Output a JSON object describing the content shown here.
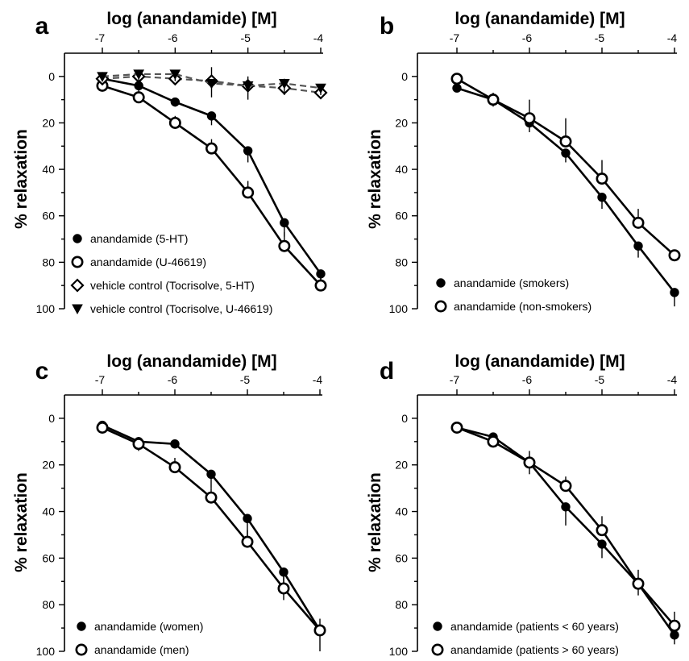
{
  "chart_data": [
    {
      "type": "line",
      "panel_label": "a",
      "title": "",
      "xlabel": "log (anandamide) [M]",
      "ylabel": "% relaxation",
      "x_ticks": [
        "-7",
        "-6",
        "-5",
        "-4"
      ],
      "y_ticks": [
        "0",
        "20",
        "40",
        "60",
        "80",
        "100"
      ],
      "xlim": [
        -7,
        -4
      ],
      "ylim": [
        -10,
        100
      ],
      "y_inverted": true,
      "x_axis_position": "top",
      "legend_position": "bottom-left",
      "x": [
        -7,
        -6.5,
        -6,
        -5.5,
        -5,
        -4.5,
        -4
      ],
      "series": [
        {
          "name": "anandamide (5-HT)",
          "marker": "filled-circle",
          "values": [
            1,
            4,
            11,
            17,
            32,
            63,
            85
          ],
          "errors": [
            1,
            2,
            2,
            4,
            5,
            6,
            7
          ]
        },
        {
          "name": "anandamide (U-46619)",
          "marker": "open-circle",
          "values": [
            4,
            9,
            20,
            31,
            50,
            73,
            90
          ],
          "errors": [
            2,
            4,
            3,
            4,
            5,
            6,
            5
          ]
        },
        {
          "name": "vehicle control (Tocrisolve, 5-HT)",
          "marker": "open-diamond",
          "dashed": true,
          "values": [
            1,
            0,
            1,
            2,
            4,
            5,
            7
          ],
          "errors": [
            1,
            1,
            1,
            6,
            4,
            4,
            2
          ]
        },
        {
          "name": "vehicle control (Tocrisolve, U-46619)",
          "marker": "filled-triangle-down",
          "dashed": true,
          "values": [
            0,
            -1,
            -1,
            3,
            4,
            3,
            5
          ],
          "errors": [
            1,
            5,
            3,
            6,
            6,
            5,
            3
          ]
        }
      ]
    },
    {
      "type": "line",
      "panel_label": "b",
      "title": "",
      "xlabel": "log (anandamide) [M]",
      "ylabel": "% relaxation",
      "x_ticks": [
        "-7",
        "-6",
        "-5",
        "-4"
      ],
      "y_ticks": [
        "0",
        "20",
        "40",
        "60",
        "80",
        "100"
      ],
      "xlim": [
        -7,
        -4
      ],
      "ylim": [
        -10,
        100
      ],
      "y_inverted": true,
      "x_axis_position": "top",
      "legend_position": "bottom-left",
      "x": [
        -7,
        -6.5,
        -6,
        -5.5,
        -5,
        -4.5,
        -4
      ],
      "series": [
        {
          "name": "anandamide (smokers)",
          "marker": "filled-circle",
          "values": [
            5,
            10,
            20,
            33,
            52,
            73,
            93
          ],
          "errors": [
            1,
            3,
            4,
            4,
            5,
            5,
            6
          ]
        },
        {
          "name": "anandamide (non-smokers)",
          "marker": "open-circle",
          "values": [
            1,
            10,
            18,
            28,
            44,
            63,
            77
          ],
          "errors": [
            1,
            3,
            8,
            10,
            8,
            6,
            2
          ]
        }
      ]
    },
    {
      "type": "line",
      "panel_label": "c",
      "title": "",
      "xlabel": "log (anandamide) [M]",
      "ylabel": "% relaxation",
      "x_ticks": [
        "-7",
        "-6",
        "-5",
        "-4"
      ],
      "y_ticks": [
        "0",
        "20",
        "40",
        "60",
        "80",
        "100"
      ],
      "xlim": [
        -7,
        -4
      ],
      "ylim": [
        -10,
        100
      ],
      "y_inverted": true,
      "x_axis_position": "top",
      "legend_position": "bottom-left",
      "x": [
        -7,
        -6.5,
        -6,
        -5.5,
        -5,
        -4.5,
        -4
      ],
      "series": [
        {
          "name": "anandamide (women)",
          "marker": "filled-circle",
          "values": [
            3,
            10,
            11,
            24,
            43,
            66,
            91
          ],
          "errors": [
            1,
            4,
            2,
            6,
            8,
            12,
            9
          ]
        },
        {
          "name": "anandamide (men)",
          "marker": "open-circle",
          "values": [
            4,
            11,
            21,
            34,
            53,
            73,
            91
          ],
          "errors": [
            1,
            3,
            4,
            4,
            5,
            5,
            5
          ]
        }
      ]
    },
    {
      "type": "line",
      "panel_label": "d",
      "title": "",
      "xlabel": "log (anandamide) [M]",
      "ylabel": "% relaxation",
      "x_ticks": [
        "-7",
        "-6",
        "-5",
        "-4"
      ],
      "y_ticks": [
        "0",
        "20",
        "40",
        "60",
        "80",
        "100"
      ],
      "xlim": [
        -7,
        -4
      ],
      "ylim": [
        -10,
        100
      ],
      "y_inverted": true,
      "x_axis_position": "top",
      "legend_position": "bottom-left",
      "x": [
        -7,
        -6.5,
        -6,
        -5.5,
        -5,
        -4.5,
        -4
      ],
      "series": [
        {
          "name": "anandamide (patients < 60 years)",
          "marker": "filled-circle",
          "values": [
            4,
            8,
            19,
            38,
            54,
            71,
            93
          ],
          "errors": [
            1,
            2,
            5,
            8,
            6,
            5,
            4
          ]
        },
        {
          "name": "anandamide (patients > 60 years)",
          "marker": "open-circle",
          "values": [
            4,
            10,
            19,
            29,
            48,
            71,
            89
          ],
          "errors": [
            1,
            2,
            5,
            4,
            6,
            6,
            6
          ]
        }
      ]
    }
  ]
}
